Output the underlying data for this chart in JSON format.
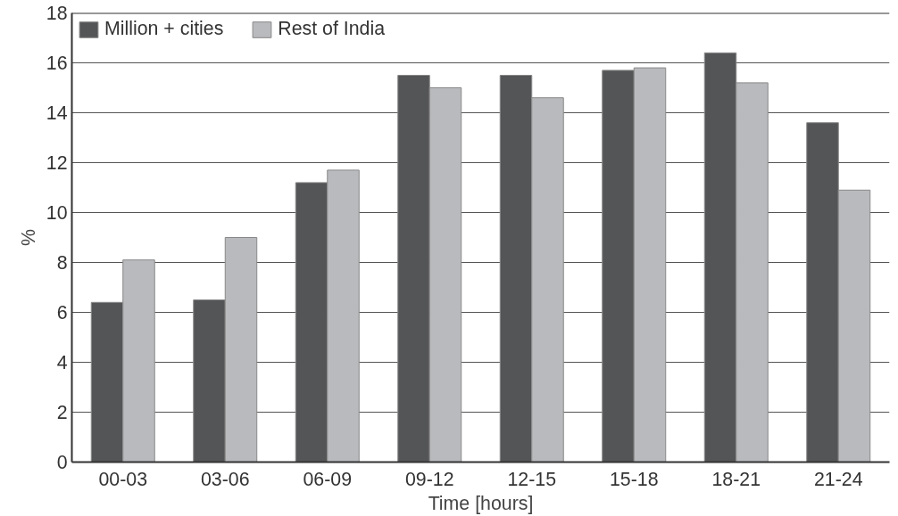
{
  "chart_data": {
    "type": "bar",
    "xlabel": "Time [hours]",
    "ylabel": "%",
    "categories": [
      "00-03",
      "03-06",
      "06-09",
      "09-12",
      "12-15",
      "15-18",
      "18-21",
      "21-24"
    ],
    "series": [
      {
        "name": "Million + cities",
        "color": "#545557",
        "values": [
          6.4,
          6.5,
          11.2,
          15.5,
          15.5,
          15.7,
          16.4,
          13.6
        ]
      },
      {
        "name": "Rest of India",
        "color": "#b9babd",
        "values": [
          8.1,
          9.0,
          11.7,
          15.0,
          14.6,
          15.8,
          15.2,
          10.9
        ]
      }
    ],
    "ylim": [
      0,
      18
    ],
    "yticks": [
      0,
      2,
      4,
      6,
      8,
      10,
      12,
      14,
      16,
      18
    ],
    "grid": "y",
    "legend": "top left"
  }
}
